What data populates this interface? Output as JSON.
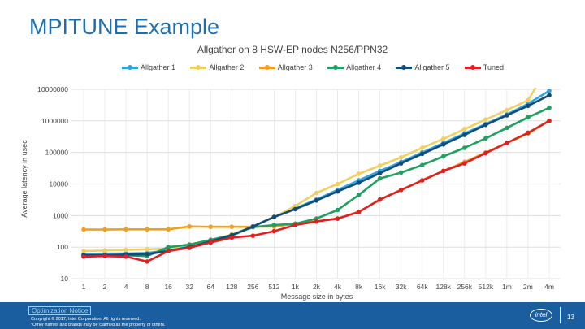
{
  "slide": {
    "title": "MPITUNE Example",
    "optimization_notice": "Optimization Notice",
    "copyright_line1": "Copyright © 2017, Intel Corporation. All rights reserved.",
    "copyright_line2": "*Other names and brands may be claimed as the property of others.",
    "logo_text": "intel",
    "page_number": "13"
  },
  "chart_data": {
    "type": "line",
    "title": "Allgather on 8 HSW-EP nodes N256/PPN32",
    "xlabel": "Message size in bytes",
    "ylabel": "Average latency in usec",
    "y_scale": "log",
    "ylim": [
      10,
      10000000
    ],
    "y_ticks": [
      "10",
      "100",
      "1000",
      "10000",
      "100000",
      "1000000",
      "10000000"
    ],
    "categories": [
      "1",
      "2",
      "4",
      "8",
      "16",
      "32",
      "64",
      "128",
      "256",
      "512",
      "1k",
      "2k",
      "4k",
      "8k",
      "16k",
      "32k",
      "64k",
      "128k",
      "256k",
      "512k",
      "1m",
      "2m",
      "4m"
    ],
    "grid": true,
    "legend_position": "top",
    "series": [
      {
        "name": "Allgather 1",
        "color": "#2ea3dc",
        "values": [
          60,
          62,
          63,
          65,
          80,
          105,
          150,
          230,
          450,
          900,
          1700,
          3200,
          6500,
          13000,
          26000,
          50000,
          100000,
          200000,
          400000,
          800000,
          1600000,
          3500000,
          9000000
        ]
      },
      {
        "name": "Allgather 2",
        "color": "#f0d060",
        "values": [
          75,
          78,
          82,
          85,
          90,
          120,
          165,
          250,
          450,
          900,
          2000,
          5200,
          10000,
          21000,
          38000,
          70000,
          140000,
          270000,
          550000,
          1100000,
          2200000,
          4500000,
          60000000
        ]
      },
      {
        "name": "Allgather 3",
        "color": "#f0a020",
        "values": [
          360,
          360,
          365,
          365,
          365,
          450,
          440,
          440,
          440,
          450,
          550,
          650,
          800,
          1300,
          3200,
          6500,
          13000,
          26000,
          50000,
          100000,
          200000,
          400000,
          1000000
        ]
      },
      {
        "name": "Allgather 4",
        "color": "#20a060",
        "values": [
          55,
          55,
          55,
          52,
          100,
          120,
          170,
          240,
          430,
          500,
          550,
          800,
          1500,
          4500,
          15000,
          23000,
          40000,
          75000,
          140000,
          280000,
          600000,
          1300000,
          2600000
        ]
      },
      {
        "name": "Allgather 5",
        "color": "#124a78",
        "values": [
          55,
          55,
          58,
          60,
          75,
          100,
          150,
          240,
          450,
          900,
          1600,
          3000,
          5800,
          11000,
          22000,
          45000,
          90000,
          180000,
          360000,
          750000,
          1500000,
          3000000,
          6500000
        ]
      },
      {
        "name": "Tuned",
        "color": "#e02020",
        "values": [
          50,
          52,
          50,
          35,
          75,
          95,
          140,
          200,
          230,
          320,
          500,
          650,
          800,
          1300,
          3200,
          6500,
          13000,
          26000,
          45000,
          95000,
          200000,
          420000,
          1000000
        ]
      }
    ]
  }
}
